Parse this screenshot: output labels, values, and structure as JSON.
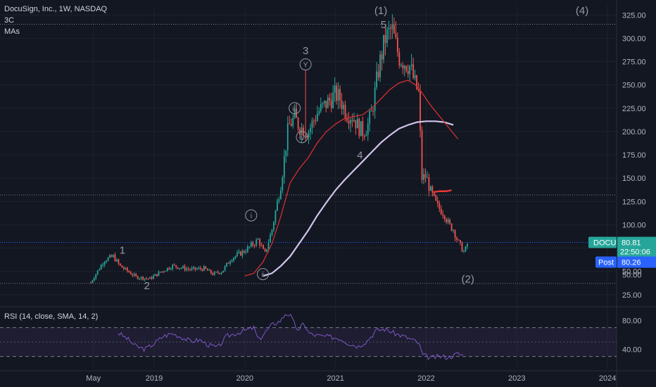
{
  "header": {
    "symbol_line": "DocuSign, Inc., 1W, NASDAQ",
    "indicator_1": "3C",
    "indicator_2": "MAs"
  },
  "rsi_header": "RSI (14, close, SMA, 14, 2)",
  "price_tags": {
    "symbol": "DOCU",
    "last_price": "80.81",
    "countdown": "22:50:06",
    "post_label": "Post",
    "post_price": "80.26",
    "axis_50": "50.00"
  },
  "colors": {
    "background": "#131722",
    "up": "#26a69a",
    "down": "#ef5350",
    "ma_fast": "#d32f2f",
    "ma_slow": "#d1c4e9",
    "rsi_line": "#7e57c2",
    "rsi_band": "#7e57c2",
    "tag_green": "#26a69a",
    "tag_blue": "#2962ff"
  },
  "chart_data": [
    {
      "type": "candlestick",
      "title": "DocuSign, Inc., 1W, NASDAQ",
      "y_ticks": [
        "325.00",
        "300.00",
        "275.00",
        "250.00",
        "225.00",
        "200.00",
        "175.00",
        "150.00",
        "125.00",
        "100.00",
        "75.00",
        "50.00",
        "25.00"
      ],
      "ylim": [
        15,
        335
      ],
      "x_ticks": [
        "May",
        "2019",
        "2020",
        "2021",
        "2022",
        "2023",
        "2024"
      ],
      "x_tick_dates": [
        2018.33,
        2019.0,
        2020.0,
        2021.0,
        2022.0,
        2023.0,
        2024.0
      ],
      "xlim": [
        2017.3,
        2024.1
      ],
      "price_path": [
        [
          2018.3,
          38
        ],
        [
          2018.45,
          62
        ],
        [
          2018.55,
          66
        ],
        [
          2018.62,
          56
        ],
        [
          2018.8,
          44
        ],
        [
          2018.95,
          42
        ],
        [
          2019.05,
          48
        ],
        [
          2019.2,
          56
        ],
        [
          2019.4,
          52
        ],
        [
          2019.55,
          53
        ],
        [
          2019.65,
          47
        ],
        [
          2019.75,
          50
        ],
        [
          2019.85,
          64
        ],
        [
          2020.0,
          72
        ],
        [
          2020.15,
          84
        ],
        [
          2020.22,
          68
        ],
        [
          2020.3,
          95
        ],
        [
          2020.4,
          145
        ],
        [
          2020.48,
          205
        ],
        [
          2020.55,
          215
        ],
        [
          2020.6,
          205
        ],
        [
          2020.7,
          200
        ],
        [
          2020.8,
          220
        ],
        [
          2020.9,
          230
        ],
        [
          2021.0,
          240
        ],
        [
          2021.05,
          235
        ],
        [
          2021.12,
          220
        ],
        [
          2021.2,
          215
        ],
        [
          2021.25,
          205
        ],
        [
          2021.3,
          200
        ],
        [
          2021.35,
          205
        ],
        [
          2021.4,
          220
        ],
        [
          2021.48,
          270
        ],
        [
          2021.55,
          300
        ],
        [
          2021.62,
          310
        ],
        [
          2021.7,
          280
        ],
        [
          2021.75,
          275
        ],
        [
          2021.82,
          270
        ],
        [
          2021.88,
          250
        ],
        [
          2021.92,
          240
        ],
        [
          2021.95,
          150
        ],
        [
          2022.0,
          152
        ],
        [
          2022.05,
          135
        ],
        [
          2022.12,
          120
        ],
        [
          2022.2,
          112
        ],
        [
          2022.25,
          100
        ],
        [
          2022.3,
          95
        ],
        [
          2022.35,
          82
        ],
        [
          2022.42,
          70
        ],
        [
          2022.46,
          80.81
        ]
      ],
      "ma_fast": [
        [
          2020.0,
          45
        ],
        [
          2020.1,
          48
        ],
        [
          2020.2,
          60
        ],
        [
          2020.3,
          80
        ],
        [
          2020.4,
          110
        ],
        [
          2020.5,
          145
        ],
        [
          2020.6,
          160
        ],
        [
          2020.7,
          172
        ],
        [
          2020.8,
          188
        ],
        [
          2020.9,
          200
        ],
        [
          2021.0,
          208
        ],
        [
          2021.1,
          214
        ],
        [
          2021.2,
          216
        ],
        [
          2021.3,
          218
        ],
        [
          2021.4,
          225
        ],
        [
          2021.5,
          235
        ],
        [
          2021.6,
          245
        ],
        [
          2021.7,
          252
        ],
        [
          2021.8,
          255
        ],
        [
          2021.88,
          250
        ],
        [
          2021.95,
          242
        ],
        [
          2022.05,
          228
        ],
        [
          2022.15,
          216
        ],
        [
          2022.25,
          204
        ],
        [
          2022.35,
          192
        ]
      ],
      "ma_slow": [
        [
          2020.2,
          45
        ],
        [
          2020.3,
          48
        ],
        [
          2020.4,
          56
        ],
        [
          2020.5,
          66
        ],
        [
          2020.6,
          80
        ],
        [
          2020.7,
          94
        ],
        [
          2020.8,
          110
        ],
        [
          2020.9,
          124
        ],
        [
          2021.0,
          137
        ],
        [
          2021.1,
          148
        ],
        [
          2021.2,
          158
        ],
        [
          2021.3,
          168
        ],
        [
          2021.4,
          178
        ],
        [
          2021.5,
          188
        ],
        [
          2021.6,
          196
        ],
        [
          2021.7,
          203
        ],
        [
          2021.8,
          207
        ],
        [
          2021.9,
          210
        ],
        [
          2022.0,
          211
        ],
        [
          2022.1,
          211
        ],
        [
          2022.2,
          210
        ],
        [
          2022.3,
          207
        ]
      ],
      "red_stub": [
        [
          2022.08,
          135
        ],
        [
          2022.15,
          136
        ],
        [
          2022.22,
          136
        ],
        [
          2022.28,
          137
        ]
      ],
      "hlines": [
        315,
        132,
        81,
        37
      ],
      "wave_labels": [
        {
          "text": "1",
          "x": 2018.65,
          "y": 69
        },
        {
          "text": "2",
          "x": 2018.92,
          "y": 31
        },
        {
          "text": "3",
          "x": 2020.67,
          "y": 283
        },
        {
          "text": "4",
          "x": 2021.27,
          "y": 171
        },
        {
          "text": "5",
          "x": 2021.53,
          "y": 311
        },
        {
          "text": "(1)",
          "x": 2021.5,
          "y": 326
        },
        {
          "text": "(2)",
          "x": 2022.46,
          "y": 38
        },
        {
          "text": "(4)",
          "x": 2023.72,
          "y": 326
        }
      ],
      "circled_labels": [
        {
          "text": "i",
          "x": 2020.07,
          "y": 110
        },
        {
          "text": "ii",
          "x": 2020.2,
          "y": 47
        },
        {
          "text": "iii",
          "x": 2020.55,
          "y": 225
        },
        {
          "text": "iv",
          "x": 2020.63,
          "y": 194
        },
        {
          "text": "Y",
          "x": 2020.67,
          "y": 272
        }
      ]
    },
    {
      "type": "line",
      "title": "RSI (14, close, SMA, 14, 2)",
      "y_ticks": [
        "80.00",
        "40.00"
      ],
      "ylim": [
        15,
        95
      ],
      "band": [
        30,
        70
      ],
      "midline": 50,
      "rsi_path": [
        [
          2018.6,
          63
        ],
        [
          2018.7,
          55
        ],
        [
          2018.8,
          44
        ],
        [
          2018.9,
          40
        ],
        [
          2019.0,
          48
        ],
        [
          2019.1,
          58
        ],
        [
          2019.2,
          62
        ],
        [
          2019.3,
          57
        ],
        [
          2019.4,
          51
        ],
        [
          2019.5,
          53
        ],
        [
          2019.6,
          46
        ],
        [
          2019.7,
          42
        ],
        [
          2019.8,
          58
        ],
        [
          2019.9,
          62
        ],
        [
          2020.0,
          66
        ],
        [
          2020.1,
          70
        ],
        [
          2020.15,
          52
        ],
        [
          2020.2,
          60
        ],
        [
          2020.3,
          74
        ],
        [
          2020.4,
          80
        ],
        [
          2020.45,
          90
        ],
        [
          2020.5,
          87
        ],
        [
          2020.55,
          74
        ],
        [
          2020.6,
          65
        ],
        [
          2020.65,
          78
        ],
        [
          2020.7,
          63
        ],
        [
          2020.75,
          60
        ],
        [
          2020.85,
          58
        ],
        [
          2020.95,
          57
        ],
        [
          2021.05,
          55
        ],
        [
          2021.15,
          48
        ],
        [
          2021.25,
          44
        ],
        [
          2021.35,
          52
        ],
        [
          2021.45,
          66
        ],
        [
          2021.55,
          68
        ],
        [
          2021.65,
          62
        ],
        [
          2021.75,
          58
        ],
        [
          2021.85,
          53
        ],
        [
          2021.92,
          48
        ],
        [
          2021.96,
          32
        ],
        [
          2022.05,
          28
        ],
        [
          2022.15,
          30
        ],
        [
          2022.25,
          29
        ],
        [
          2022.35,
          34
        ],
        [
          2022.42,
          31
        ]
      ]
    }
  ]
}
